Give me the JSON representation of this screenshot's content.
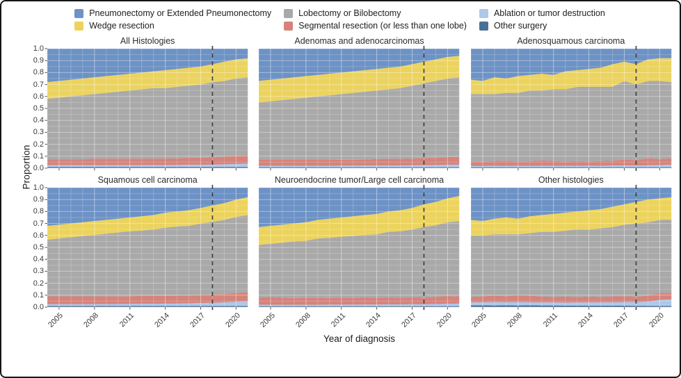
{
  "axes": {
    "y_title": "Proportion",
    "x_title": "Year of diagnosis",
    "y_ticks": [
      "1.0",
      "0.9",
      "0.8",
      "0.7",
      "0.6",
      "0.5",
      "0.4",
      "0.3",
      "0.2",
      "0.1",
      "0.0"
    ],
    "x_ticks": [
      "2005",
      "2008",
      "2011",
      "2014",
      "2017",
      "2020"
    ]
  },
  "legend": {
    "items": [
      {
        "key": "pneumonectomy",
        "label": "Pneumonectomy or Extended Pneumonectomy",
        "color": "#6d92c5"
      },
      {
        "key": "lobectomy",
        "label": "Lobectomy or Bilobectomy",
        "color": "#a9a9a9"
      },
      {
        "key": "ablation",
        "label": "Ablation or tumor destruction",
        "color": "#aec8e9"
      },
      {
        "key": "wedge",
        "label": "Wedge resection",
        "color": "#ecd35e"
      },
      {
        "key": "segmental",
        "label": "Segmental resection (or less than one lobe)",
        "color": "#d5837b"
      },
      {
        "key": "other_surgery",
        "label": "Other surgery",
        "color": "#4a7094"
      }
    ]
  },
  "chart_data": {
    "type": "area",
    "stacked": true,
    "normalized": true,
    "ylim": [
      0,
      1
    ],
    "x": [
      2004,
      2005,
      2006,
      2007,
      2008,
      2009,
      2010,
      2011,
      2012,
      2013,
      2014,
      2015,
      2016,
      2017,
      2018,
      2019,
      2020,
      2021
    ],
    "x_tick_values": [
      2005,
      2008,
      2011,
      2014,
      2017,
      2020
    ],
    "dashed_line_x": 2018,
    "stack_order": [
      "other_surgery",
      "ablation",
      "segmental",
      "lobectomy",
      "wedge",
      "pneumonectomy"
    ],
    "series_colors": {
      "pneumonectomy": "#6d92c5",
      "lobectomy": "#a9a9a9",
      "ablation": "#aec8e9",
      "wedge": "#ecd35e",
      "segmental": "#d5837b",
      "other_surgery": "#4a7094"
    },
    "panels": [
      {
        "title": "All Histologies",
        "series": {
          "pneumonectomy": [
            0.28,
            0.27,
            0.26,
            0.25,
            0.24,
            0.23,
            0.22,
            0.21,
            0.2,
            0.19,
            0.18,
            0.17,
            0.16,
            0.15,
            0.13,
            0.11,
            0.09,
            0.08
          ],
          "wedge": [
            0.14,
            0.14,
            0.14,
            0.14,
            0.14,
            0.14,
            0.14,
            0.14,
            0.14,
            0.14,
            0.15,
            0.15,
            0.15,
            0.15,
            0.15,
            0.16,
            0.16,
            0.16
          ],
          "lobectomy": [
            0.505,
            0.515,
            0.525,
            0.535,
            0.54,
            0.55,
            0.56,
            0.57,
            0.58,
            0.589,
            0.589,
            0.598,
            0.602,
            0.612,
            0.63,
            0.633,
            0.645,
            0.652
          ],
          "segmental": [
            0.05,
            0.05,
            0.05,
            0.05,
            0.055,
            0.055,
            0.055,
            0.055,
            0.055,
            0.055,
            0.055,
            0.055,
            0.06,
            0.06,
            0.06,
            0.065,
            0.07,
            0.07
          ],
          "ablation": [
            0.015,
            0.015,
            0.015,
            0.015,
            0.015,
            0.015,
            0.015,
            0.015,
            0.015,
            0.016,
            0.016,
            0.017,
            0.018,
            0.018,
            0.02,
            0.022,
            0.025,
            0.028
          ],
          "other_surgery": [
            0.01,
            0.01,
            0.01,
            0.01,
            0.01,
            0.01,
            0.01,
            0.01,
            0.01,
            0.01,
            0.01,
            0.01,
            0.01,
            0.01,
            0.01,
            0.01,
            0.01,
            0.01
          ]
        }
      },
      {
        "title": "Adenomas and adenocarcinomas",
        "series": {
          "pneumonectomy": [
            0.27,
            0.26,
            0.25,
            0.24,
            0.23,
            0.22,
            0.21,
            0.2,
            0.19,
            0.18,
            0.17,
            0.16,
            0.15,
            0.13,
            0.11,
            0.09,
            0.07,
            0.06
          ],
          "wedge": [
            0.18,
            0.18,
            0.18,
            0.18,
            0.18,
            0.18,
            0.18,
            0.18,
            0.18,
            0.18,
            0.18,
            0.18,
            0.18,
            0.18,
            0.18,
            0.18,
            0.18,
            0.18
          ],
          "lobectomy": [
            0.48,
            0.49,
            0.5,
            0.51,
            0.52,
            0.53,
            0.54,
            0.549,
            0.559,
            0.568,
            0.573,
            0.582,
            0.592,
            0.611,
            0.625,
            0.644,
            0.657,
            0.665
          ],
          "segmental": [
            0.05,
            0.05,
            0.05,
            0.05,
            0.05,
            0.05,
            0.05,
            0.05,
            0.05,
            0.05,
            0.055,
            0.055,
            0.055,
            0.055,
            0.06,
            0.06,
            0.065,
            0.065
          ],
          "ablation": [
            0.012,
            0.012,
            0.012,
            0.012,
            0.012,
            0.012,
            0.012,
            0.013,
            0.013,
            0.014,
            0.014,
            0.015,
            0.015,
            0.016,
            0.017,
            0.018,
            0.02,
            0.022
          ],
          "other_surgery": [
            0.008,
            0.008,
            0.008,
            0.008,
            0.008,
            0.008,
            0.008,
            0.008,
            0.008,
            0.008,
            0.008,
            0.008,
            0.008,
            0.008,
            0.008,
            0.008,
            0.008,
            0.008
          ]
        }
      },
      {
        "title": "Adenosquamous carcinoma",
        "series": {
          "pneumonectomy": [
            0.26,
            0.27,
            0.24,
            0.25,
            0.23,
            0.22,
            0.21,
            0.22,
            0.19,
            0.18,
            0.17,
            0.16,
            0.13,
            0.11,
            0.13,
            0.09,
            0.08,
            0.08
          ],
          "wedge": [
            0.12,
            0.11,
            0.14,
            0.12,
            0.14,
            0.13,
            0.14,
            0.12,
            0.15,
            0.14,
            0.15,
            0.16,
            0.19,
            0.16,
            0.17,
            0.18,
            0.19,
            0.2
          ],
          "lobectomy": [
            0.562,
            0.567,
            0.56,
            0.567,
            0.575,
            0.592,
            0.585,
            0.6,
            0.605,
            0.62,
            0.624,
            0.62,
            0.618,
            0.657,
            0.633,
            0.646,
            0.654,
            0.637
          ],
          "segmental": [
            0.04,
            0.035,
            0.04,
            0.045,
            0.035,
            0.04,
            0.045,
            0.04,
            0.035,
            0.04,
            0.035,
            0.04,
            0.04,
            0.05,
            0.045,
            0.06,
            0.05,
            0.055
          ],
          "ablation": [
            0.01,
            0.01,
            0.012,
            0.01,
            0.012,
            0.01,
            0.012,
            0.012,
            0.012,
            0.012,
            0.013,
            0.012,
            0.014,
            0.015,
            0.014,
            0.016,
            0.018,
            0.02
          ],
          "other_surgery": [
            0.008,
            0.008,
            0.008,
            0.008,
            0.008,
            0.008,
            0.008,
            0.008,
            0.008,
            0.008,
            0.008,
            0.008,
            0.008,
            0.008,
            0.008,
            0.008,
            0.008,
            0.008
          ]
        }
      },
      {
        "title": "Squamous cell carcinoma",
        "series": {
          "pneumonectomy": [
            0.32,
            0.31,
            0.3,
            0.29,
            0.28,
            0.27,
            0.26,
            0.25,
            0.24,
            0.23,
            0.21,
            0.2,
            0.19,
            0.17,
            0.15,
            0.13,
            0.1,
            0.08
          ],
          "wedge": [
            0.115,
            0.115,
            0.115,
            0.115,
            0.115,
            0.115,
            0.115,
            0.115,
            0.12,
            0.12,
            0.125,
            0.125,
            0.13,
            0.13,
            0.135,
            0.14,
            0.145,
            0.15
          ],
          "lobectomy": [
            0.475,
            0.485,
            0.495,
            0.505,
            0.515,
            0.524,
            0.534,
            0.543,
            0.547,
            0.557,
            0.57,
            0.58,
            0.583,
            0.596,
            0.609,
            0.62,
            0.635,
            0.645
          ],
          "segmental": [
            0.065,
            0.065,
            0.065,
            0.065,
            0.065,
            0.065,
            0.065,
            0.065,
            0.065,
            0.065,
            0.065,
            0.065,
            0.065,
            0.07,
            0.07,
            0.07,
            0.075,
            0.075
          ],
          "ablation": [
            0.015,
            0.015,
            0.015,
            0.015,
            0.015,
            0.016,
            0.016,
            0.017,
            0.018,
            0.018,
            0.02,
            0.02,
            0.022,
            0.024,
            0.026,
            0.03,
            0.035,
            0.04
          ],
          "other_surgery": [
            0.01,
            0.01,
            0.01,
            0.01,
            0.01,
            0.01,
            0.01,
            0.01,
            0.01,
            0.01,
            0.01,
            0.01,
            0.01,
            0.01,
            0.01,
            0.01,
            0.01,
            0.01
          ]
        }
      },
      {
        "title": "Neuroendocrine tumor/Large cell carcinoma",
        "series": {
          "pneumonectomy": [
            0.33,
            0.32,
            0.31,
            0.3,
            0.29,
            0.27,
            0.26,
            0.25,
            0.24,
            0.23,
            0.22,
            0.2,
            0.19,
            0.17,
            0.14,
            0.12,
            0.09,
            0.07
          ],
          "wedge": [
            0.15,
            0.15,
            0.15,
            0.15,
            0.155,
            0.155,
            0.16,
            0.16,
            0.165,
            0.165,
            0.17,
            0.17,
            0.175,
            0.18,
            0.19,
            0.195,
            0.2,
            0.21
          ],
          "lobectomy": [
            0.44,
            0.445,
            0.46,
            0.475,
            0.475,
            0.495,
            0.504,
            0.509,
            0.519,
            0.523,
            0.533,
            0.547,
            0.557,
            0.566,
            0.591,
            0.599,
            0.617,
            0.63
          ],
          "segmental": [
            0.06,
            0.065,
            0.06,
            0.055,
            0.06,
            0.06,
            0.055,
            0.06,
            0.055,
            0.06,
            0.055,
            0.06,
            0.055,
            0.06,
            0.055,
            0.06,
            0.065,
            0.06
          ],
          "ablation": [
            0.012,
            0.012,
            0.012,
            0.012,
            0.012,
            0.012,
            0.013,
            0.013,
            0.013,
            0.014,
            0.014,
            0.015,
            0.015,
            0.016,
            0.016,
            0.018,
            0.02,
            0.022
          ],
          "other_surgery": [
            0.008,
            0.008,
            0.008,
            0.008,
            0.008,
            0.008,
            0.008,
            0.008,
            0.008,
            0.008,
            0.008,
            0.008,
            0.008,
            0.008,
            0.008,
            0.008,
            0.008,
            0.008
          ]
        }
      },
      {
        "title": "Other histologies",
        "series": {
          "pneumonectomy": [
            0.27,
            0.28,
            0.26,
            0.25,
            0.26,
            0.24,
            0.23,
            0.22,
            0.21,
            0.2,
            0.19,
            0.18,
            0.16,
            0.14,
            0.12,
            0.1,
            0.09,
            0.08
          ],
          "wedge": [
            0.13,
            0.12,
            0.13,
            0.14,
            0.13,
            0.14,
            0.14,
            0.15,
            0.15,
            0.15,
            0.16,
            0.16,
            0.17,
            0.17,
            0.18,
            0.19,
            0.18,
            0.19
          ],
          "lobectomy": [
            0.515,
            0.51,
            0.513,
            0.519,
            0.508,
            0.524,
            0.541,
            0.545,
            0.552,
            0.566,
            0.561,
            0.575,
            0.58,
            0.598,
            0.612,
            0.614,
            0.61,
            0.61
          ],
          "segmental": [
            0.045,
            0.05,
            0.055,
            0.05,
            0.06,
            0.055,
            0.05,
            0.045,
            0.05,
            0.045,
            0.05,
            0.045,
            0.05,
            0.05,
            0.045,
            0.05,
            0.06,
            0.055
          ],
          "ablation": [
            0.025,
            0.025,
            0.028,
            0.026,
            0.028,
            0.026,
            0.025,
            0.026,
            0.025,
            0.026,
            0.026,
            0.028,
            0.028,
            0.03,
            0.032,
            0.035,
            0.05,
            0.055
          ],
          "other_surgery": [
            0.015,
            0.015,
            0.014,
            0.015,
            0.014,
            0.015,
            0.014,
            0.014,
            0.013,
            0.013,
            0.013,
            0.012,
            0.012,
            0.012,
            0.011,
            0.011,
            0.01,
            0.01
          ]
        }
      }
    ]
  }
}
